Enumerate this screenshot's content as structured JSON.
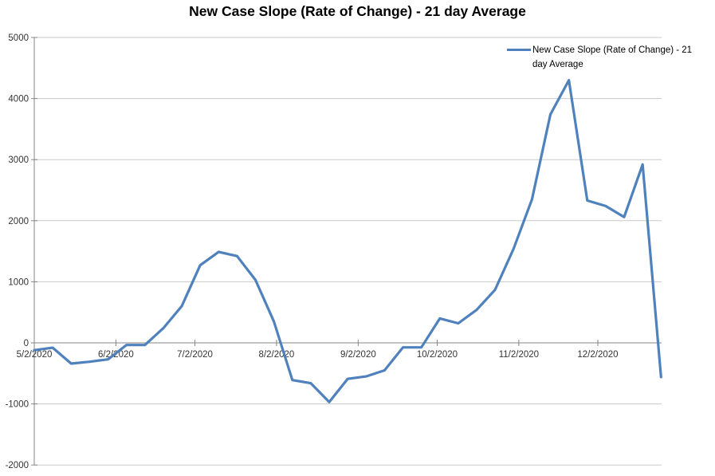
{
  "header": {
    "title": "New Case Slope (Rate of Change) - 21 day Average"
  },
  "legend": {
    "label": "New Case Slope (Rate of Change) - 21 day Average"
  },
  "chart_data": {
    "type": "line",
    "title": "New Case Slope (Rate of Change) - 21 day Average",
    "x": [
      "5/2/2020",
      "5/9/2020",
      "5/16/2020",
      "5/23/2020",
      "5/30/2020",
      "6/6/2020",
      "6/13/2020",
      "6/20/2020",
      "6/27/2020",
      "7/4/2020",
      "7/11/2020",
      "7/18/2020",
      "7/25/2020",
      "8/1/2020",
      "8/8/2020",
      "8/15/2020",
      "8/22/2020",
      "8/29/2020",
      "9/5/2020",
      "9/12/2020",
      "9/19/2020",
      "9/26/2020",
      "10/3/2020",
      "10/10/2020",
      "10/17/2020",
      "10/24/2020",
      "10/31/2020",
      "11/7/2020",
      "11/14/2020",
      "11/21/2020",
      "11/28/2020",
      "12/5/2020",
      "12/12/2020",
      "12/19/2020",
      "12/26/2020"
    ],
    "series": [
      {
        "name": "New Case Slope (Rate of Change) - 21 day Average",
        "values": [
          -120,
          -80,
          -340,
          -310,
          -270,
          -35,
          -35,
          240,
          600,
          1270,
          1490,
          1420,
          1030,
          350,
          -610,
          -660,
          -970,
          -590,
          -550,
          -450,
          -75,
          -75,
          400,
          320,
          540,
          870,
          1540,
          2350,
          3740,
          4300,
          2330,
          2240,
          2060,
          2920,
          -560
        ]
      }
    ],
    "xlabel": "",
    "ylabel": "",
    "ylim": [
      -2000,
      5000
    ],
    "ytick_step": 1000,
    "y_tick_labels": [
      "-2000",
      "-1000",
      "0",
      "1000",
      "2000",
      "3000",
      "4000",
      "5000"
    ],
    "x_tick_labels": [
      "5/2/2020",
      "6/2/2020",
      "7/2/2020",
      "8/2/2020",
      "9/2/2020",
      "10/2/2020",
      "11/2/2020",
      "12/2/2020"
    ],
    "grid": "horizontal-major",
    "legend_position": "top-right",
    "colors": {
      "series": "#4F81BD",
      "gridline": "#C9C9C9",
      "axis": "#868686",
      "tick_label": "#333333",
      "title": "#000000",
      "background": "#FFFFFF"
    }
  }
}
